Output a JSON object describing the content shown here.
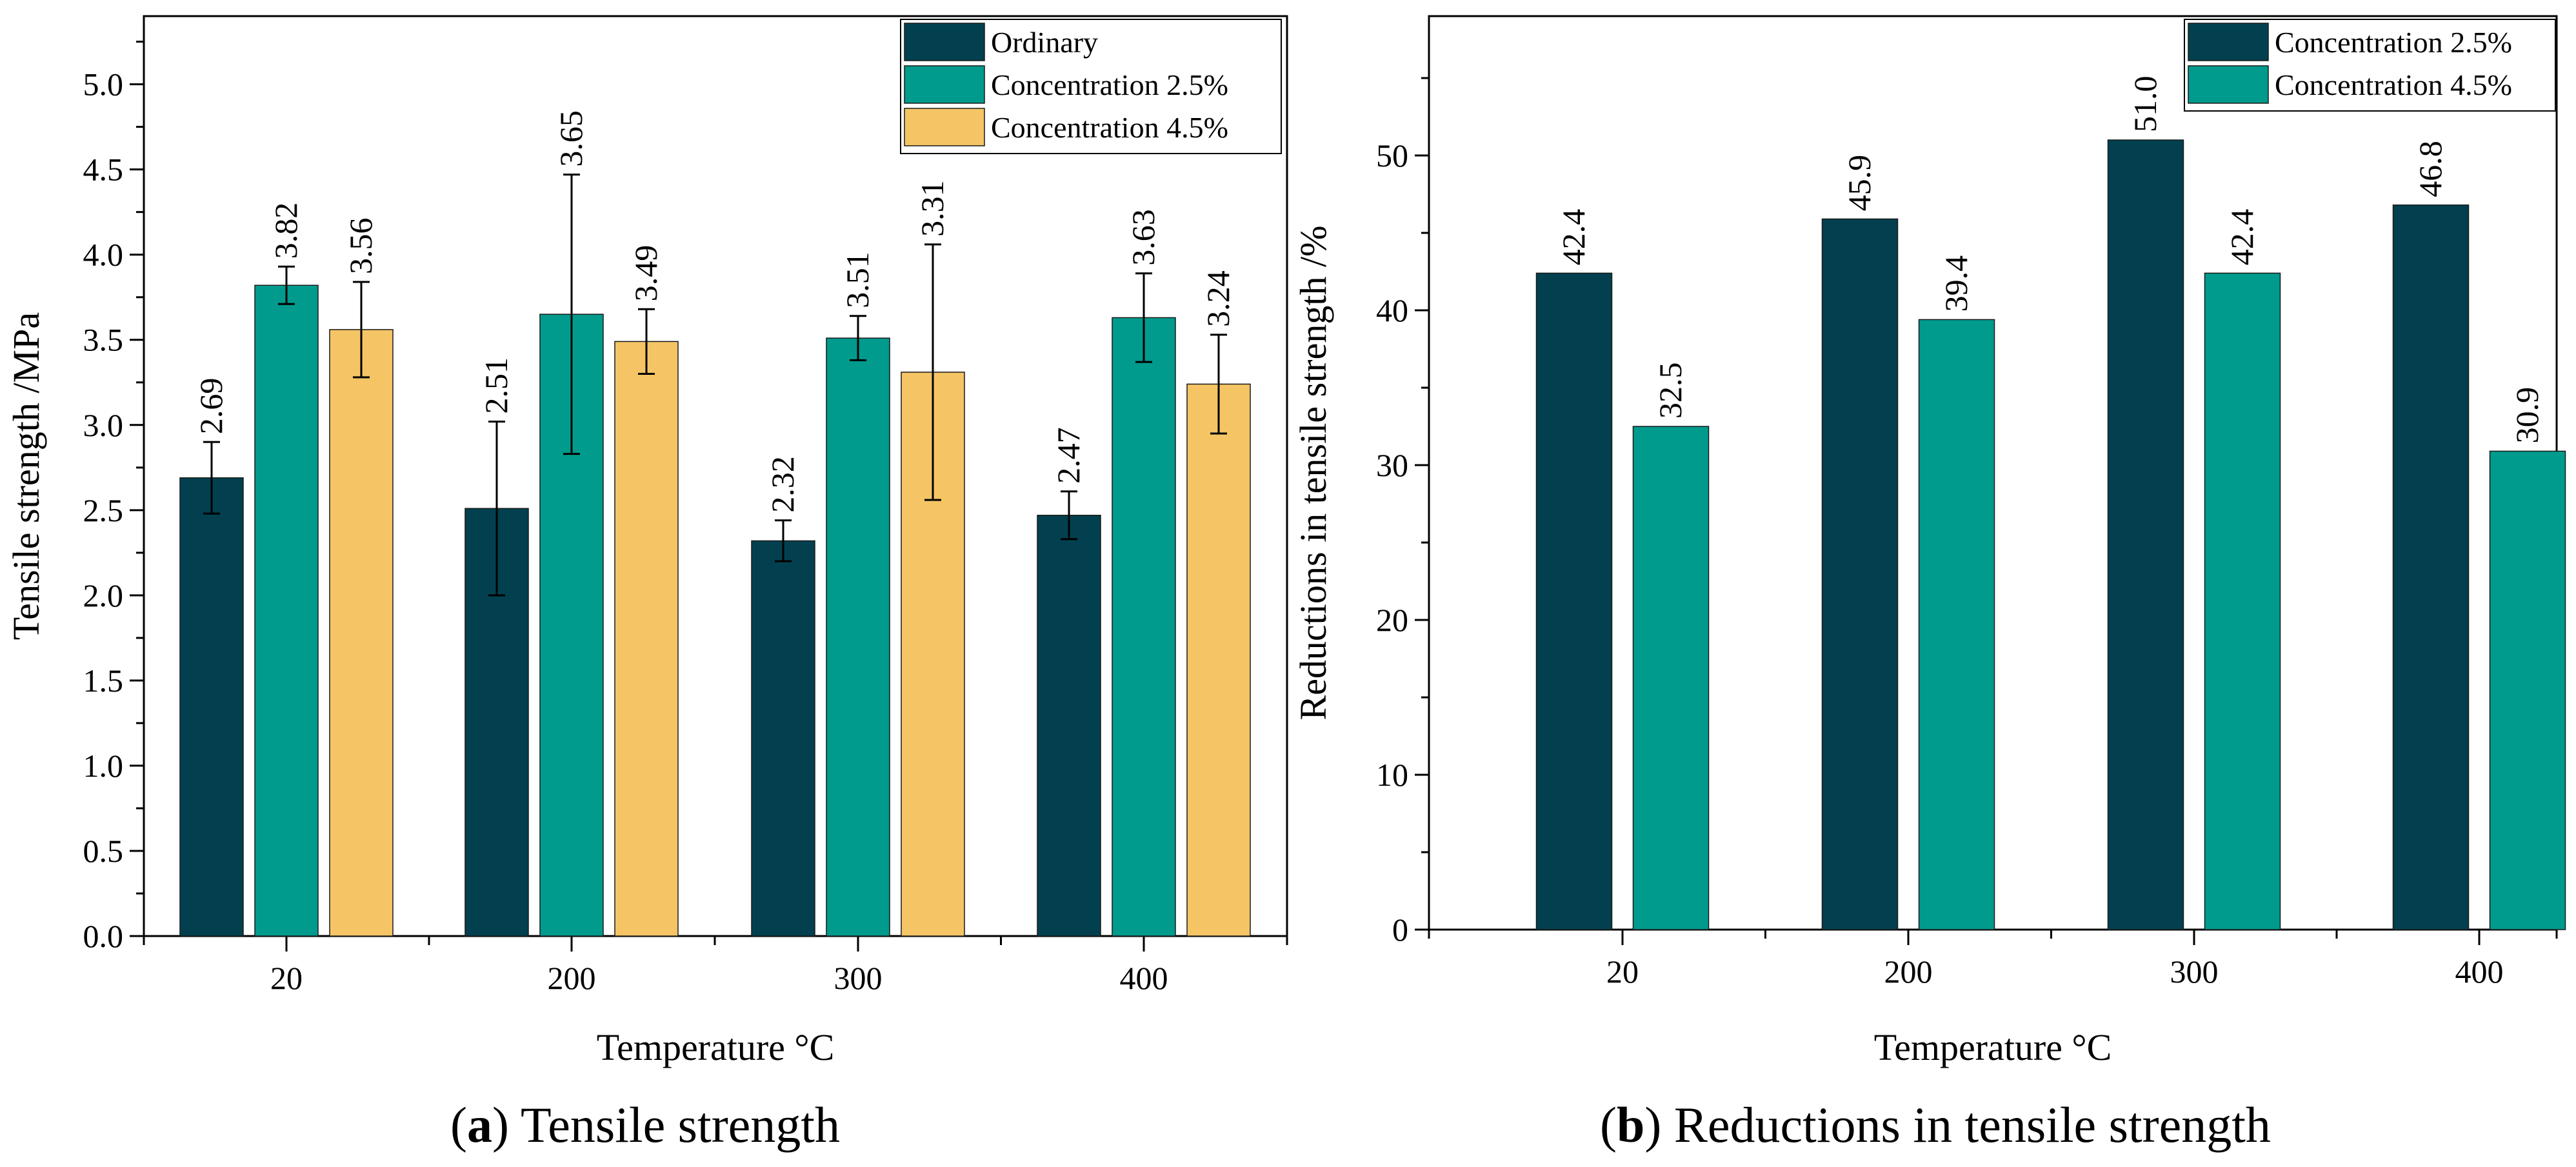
{
  "chart_data": [
    {
      "id": "a",
      "type": "bar",
      "caption_letter": "a",
      "caption_text": ") Tensile strength",
      "categories": [
        "20",
        "200",
        "300",
        "400"
      ],
      "xlabel": "Temperature °C",
      "ylabel": "Tensile strength /MPa",
      "ylim": [
        0,
        5.4
      ],
      "yticks": [
        "0.0",
        "0.5",
        "1.0",
        "1.5",
        "2.0",
        "2.5",
        "3.0",
        "3.5",
        "4.0",
        "4.5",
        "5.0"
      ],
      "legend_position": "top-right",
      "series": [
        {
          "name": "Ordinary",
          "color": "#02404f",
          "values": [
            2.69,
            2.51,
            2.32,
            2.47
          ],
          "labels": [
            "2.69",
            "2.51",
            "2.32",
            "2.47"
          ],
          "errors": [
            0.21,
            0.51,
            0.12,
            0.14
          ]
        },
        {
          "name": "Concentration 2.5%",
          "color": "#009b8d",
          "values": [
            3.82,
            3.65,
            3.51,
            3.63
          ],
          "labels": [
            "3.82",
            "3.65",
            "3.51",
            "3.63"
          ],
          "errors": [
            0.11,
            0.82,
            0.13,
            0.26
          ]
        },
        {
          "name": "Concentration 4.5%",
          "color": "#f5c565",
          "values": [
            3.56,
            3.49,
            3.31,
            3.24
          ],
          "labels": [
            "3.56",
            "3.49",
            "3.31",
            "3.24"
          ],
          "errors": [
            0.28,
            0.19,
            0.75,
            0.29
          ]
        }
      ]
    },
    {
      "id": "b",
      "type": "bar",
      "caption_letter": "b",
      "caption_text": ") Reductions in tensile strength",
      "categories": [
        "20",
        "200",
        "300",
        "400"
      ],
      "xlabel": "Temperature °C",
      "ylabel": "Reductions in tensile strength /%",
      "ylim": [
        0,
        59
      ],
      "yticks": [
        "0",
        "10",
        "20",
        "30",
        "40",
        "50"
      ],
      "legend_position": "top-right",
      "series": [
        {
          "name": "Concentration 2.5%",
          "color": "#02404f",
          "values": [
            42.4,
            45.9,
            51.0,
            46.8
          ],
          "labels": [
            "42.4",
            "45.9",
            "51.0",
            "46.8"
          ]
        },
        {
          "name": "Concentration 4.5%",
          "color": "#009b8d",
          "values": [
            32.5,
            39.4,
            42.4,
            30.9
          ],
          "labels": [
            "32.5",
            "39.4",
            "42.4",
            "30.9"
          ]
        }
      ]
    }
  ]
}
